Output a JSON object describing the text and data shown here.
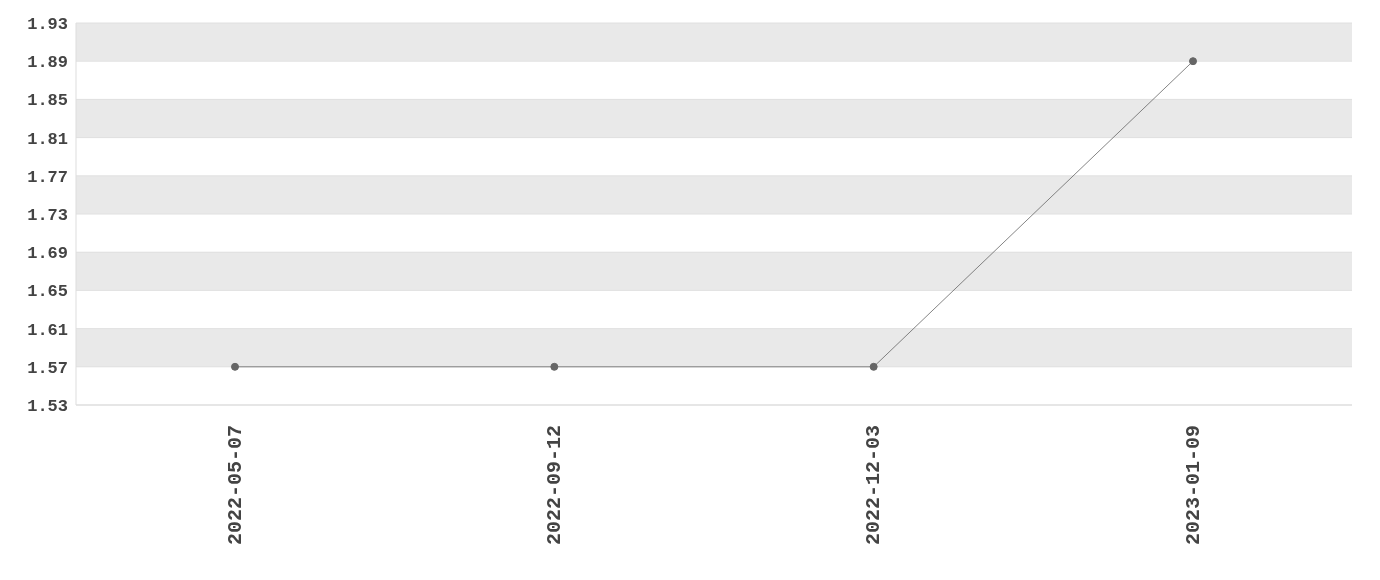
{
  "chart_data": {
    "type": "line",
    "categories": [
      "2022-05-07",
      "2022-09-12",
      "2022-12-03",
      "2023-01-09"
    ],
    "series": [
      {
        "color": "#666666",
        "values": [
          1.57,
          1.57,
          1.57,
          1.89
        ]
      }
    ],
    "ylim": [
      1.53,
      1.93
    ],
    "yticks": [
      1.53,
      1.57,
      1.61,
      1.65,
      1.69,
      1.73,
      1.77,
      1.81,
      1.85,
      1.89,
      1.93
    ],
    "grid": "y",
    "marker": "circle",
    "line_style": "solid",
    "legend": false
  }
}
